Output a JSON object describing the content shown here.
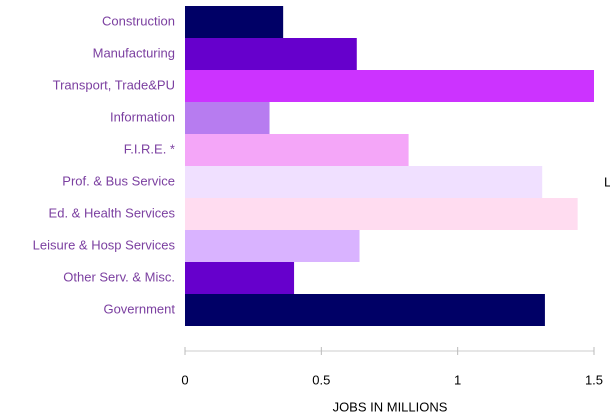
{
  "chart_data": {
    "type": "bar",
    "orientation": "horizontal",
    "categories": [
      "Construction",
      "Manufacturing",
      "Transport, Trade&PU",
      "Information",
      "F.I.R.E. *",
      "Prof. & Bus Service",
      "Ed. & Health Services",
      "Leisure & Hosp Services",
      "Other Serv. & Misc.",
      "Government"
    ],
    "values": [
      0.36,
      0.63,
      1.5,
      0.31,
      0.82,
      1.31,
      1.44,
      0.64,
      0.4,
      1.32
    ],
    "colors": [
      "#000066",
      "#6600cc",
      "#cc33ff",
      "#b77cf0",
      "#f4a6f8",
      "#f0e0ff",
      "#ffdcf0",
      "#d9b3ff",
      "#6600cc",
      "#000066"
    ],
    "xlim": [
      0,
      1.5
    ],
    "xticks": [
      0,
      0.5,
      1,
      1.5
    ],
    "xlabel": "JOBS IN MILLIONS",
    "annotation": "L"
  }
}
